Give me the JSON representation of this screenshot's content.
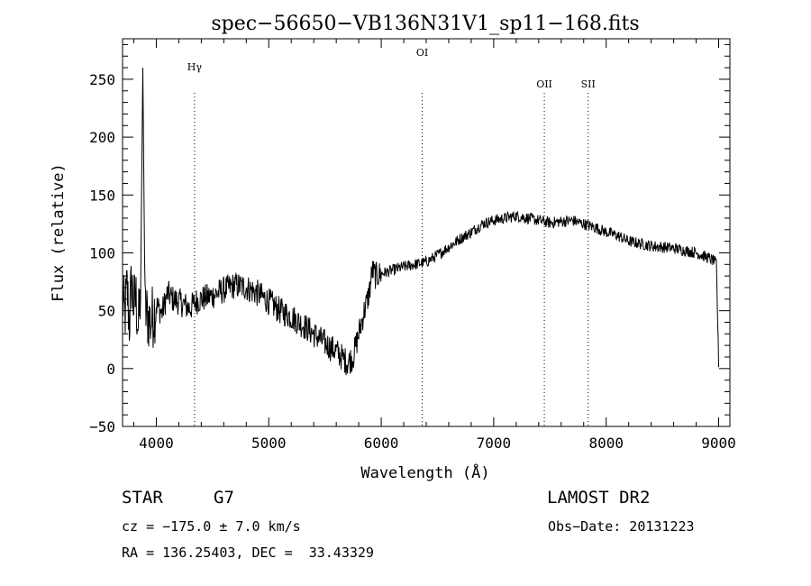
{
  "chart_data": {
    "type": "line",
    "title": "spec−56650−VB136N31V1_sp11−168.fits",
    "xlabel": "Wavelength (Å)",
    "ylabel": "Flux (relative)",
    "xlim": [
      3700,
      9100
    ],
    "ylim": [
      -50,
      285
    ],
    "xticks": [
      4000,
      5000,
      6000,
      7000,
      8000,
      9000
    ],
    "xtick_labels": [
      "4000",
      "5000",
      "6000",
      "7000",
      "8000",
      "9000"
    ],
    "yticks": [
      -50,
      0,
      50,
      100,
      150,
      200,
      250
    ],
    "ytick_labels": [
      "−50",
      "0",
      "50",
      "100",
      "150",
      "200",
      "250"
    ],
    "grid": false,
    "lines": [
      {
        "label": "Hγ",
        "x": 4340
      },
      {
        "label": "OI",
        "x": 6364
      },
      {
        "label": "OII",
        "x": 7450
      },
      {
        "label": "SII",
        "x": 7840
      }
    ],
    "series": [
      {
        "x": [
          3700,
          3720,
          3740,
          3760,
          3780,
          3800,
          3820,
          3840,
          3860,
          3880,
          3900,
          3950,
          4000,
          4050,
          4100,
          4150,
          4200,
          4250,
          4300,
          4350,
          4400,
          4500,
          4600,
          4700,
          4800,
          4900,
          5000,
          5100,
          5200,
          5300,
          5400,
          5500,
          5550,
          5600,
          5650,
          5700,
          5750,
          5800,
          5850,
          5880,
          5900,
          5920,
          5950,
          6000,
          6100,
          6200,
          6300,
          6400,
          6500,
          6600,
          6700,
          6800,
          6900,
          7000,
          7100,
          7200,
          7300,
          7400,
          7500,
          7600,
          7700,
          7800,
          7900,
          8000,
          8100,
          8200,
          8300,
          8400,
          8500,
          8600,
          8700,
          8800,
          8900,
          8960,
          8980,
          9000
        ],
        "y": [
          60,
          45,
          70,
          40,
          75,
          55,
          60,
          35,
          65,
          260,
          50,
          40,
          55,
          48,
          65,
          60,
          58,
          55,
          52,
          58,
          60,
          63,
          68,
          72,
          70,
          65,
          58,
          50,
          45,
          38,
          30,
          22,
          18,
          15,
          10,
          5,
          10,
          30,
          50,
          60,
          70,
          85,
          80,
          82,
          85,
          88,
          90,
          92,
          98,
          105,
          112,
          118,
          125,
          128,
          130,
          132,
          130,
          128,
          126,
          127,
          128,
          125,
          122,
          118,
          115,
          110,
          108,
          106,
          105,
          104,
          102,
          100,
          96,
          93,
          90,
          5
        ]
      }
    ]
  },
  "info": {
    "object_class": "STAR",
    "subclass": "G7",
    "survey": "LAMOST DR2",
    "cz": "cz = −175.0 ± 7.0 km/s",
    "obs_date": "Obs−Date: 20131223",
    "coords": "RA = 136.25403, DEC =  33.43329"
  }
}
